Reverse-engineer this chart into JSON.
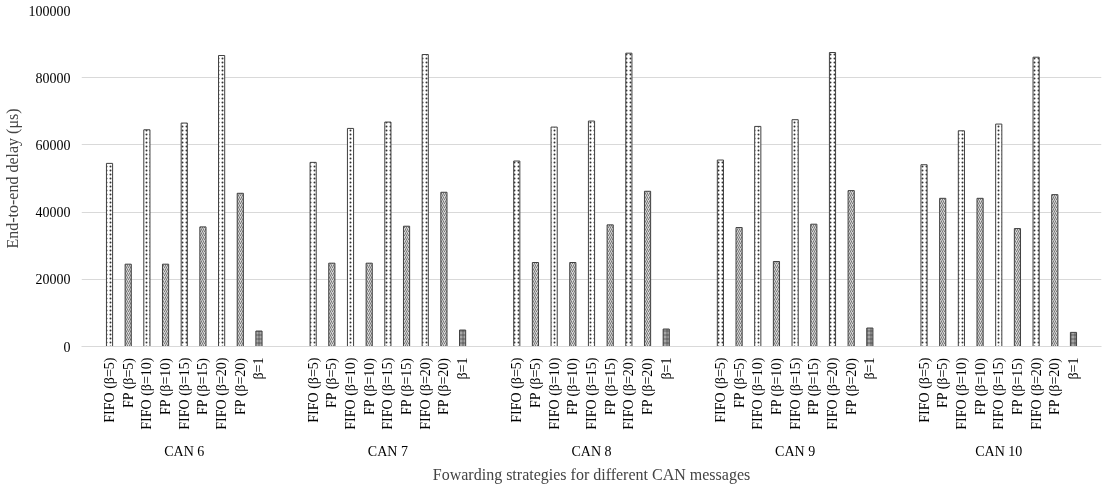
{
  "chart_data": {
    "type": "bar",
    "xlabel": "Fowarding strategies for different CAN messages",
    "ylabel": "End-to-end delay (μs)",
    "categories": [
      "FIFO (β=5)",
      "FP (β=5)",
      "FIFO (β=10)",
      "FP (β=10)",
      "FIFO (β=15)",
      "FP (β=15)",
      "FIFO (β=20)",
      "FP (β=20)",
      "β=1",
      "FIFO (β=5)",
      "FP (β=5)",
      "FIFO (β=10)",
      "FP (β=10)",
      "FIFO (β=15)",
      "FP (β=15)",
      "FIFO (β=20)",
      "FP (β=20)",
      "β=1",
      "FIFO (β=5)",
      "FP (β=5)",
      "FIFO (β=10)",
      "FP (β=10)",
      "FIFO (β=15)",
      "FP (β=15)",
      "FIFO (β=20)",
      "FP (β=20)",
      "β=1",
      "FIFO (β=5)",
      "FP (β=5)",
      "FIFO (β=10)",
      "FP (β=10)",
      "FIFO (β=15)",
      "FP (β=15)",
      "FIFO (β=20)",
      "FP (β=20)",
      "β=1",
      "FIFO (β=5)",
      "FP (β=5)",
      "FIFO (β=10)",
      "FP (β=10)",
      "FIFO (β=15)",
      "FP (β=15)",
      "FIFO (β=20)",
      "FP (β=20)",
      "β=1"
    ],
    "values": [
      54500,
      24500,
      64500,
      24500,
      66500,
      35600,
      86600,
      45600,
      4600,
      54800,
      24800,
      64900,
      24800,
      66800,
      35800,
      86900,
      45900,
      4900,
      55200,
      25000,
      65300,
      25000,
      67100,
      36200,
      87300,
      46200,
      5200,
      55500,
      35400,
      65500,
      25300,
      67500,
      36400,
      87500,
      46400,
      5500,
      54100,
      44100,
      64200,
      44100,
      66200,
      35100,
      86100,
      45200,
      4200
    ],
    "colors": [
      "#ffffff",
      "#d9d9d9",
      "#ffffff",
      "#d9d9d9",
      "#ffffff",
      "#d9d9d9",
      "#ffffff",
      "#d9d9d9",
      "#a6a6a6",
      "#ffffff",
      "#d9d9d9",
      "#ffffff",
      "#d9d9d9",
      "#ffffff",
      "#d9d9d9",
      "#ffffff",
      "#d9d9d9",
      "#a6a6a6",
      "#ffffff",
      "#d9d9d9",
      "#ffffff",
      "#d9d9d9",
      "#ffffff",
      "#d9d9d9",
      "#ffffff",
      "#d9d9d9",
      "#a6a6a6",
      "#ffffff",
      "#d9d9d9",
      "#ffffff",
      "#d9d9d9",
      "#ffffff",
      "#d9d9d9",
      "#ffffff",
      "#d9d9d9",
      "#a6a6a6",
      "#ffffff",
      "#d9d9d9",
      "#ffffff",
      "#d9d9d9",
      "#ffffff",
      "#d9d9d9",
      "#ffffff",
      "#d9d9d9",
      "#a6a6a6"
    ],
    "annotations": [
      "CAN 6",
      "CAN 7",
      "CAN 8",
      "CAN 9",
      "CAN 10"
    ],
    "ylim": [
      0,
      100000
    ],
    "yticks": [
      0,
      20000,
      40000,
      60000,
      80000,
      100000
    ],
    "grid": "y"
  }
}
